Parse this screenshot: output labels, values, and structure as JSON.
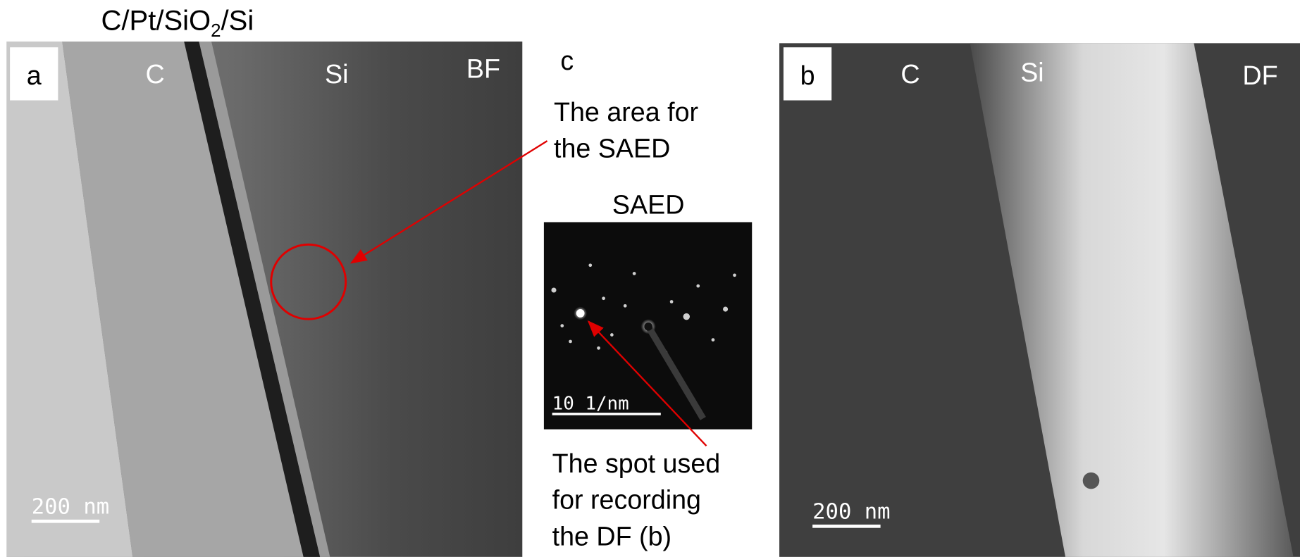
{
  "title": {
    "main": "C/Pt/SiO",
    "subscript": "2",
    "suffix": "/Si"
  },
  "panel_a": {
    "label": "a",
    "regions": [
      "C",
      "Si"
    ],
    "mode": "BF",
    "scale_bar": "200 nm"
  },
  "panel_c": {
    "label": "c",
    "area_note": [
      "The area for",
      "the SAED"
    ],
    "saed_title": "SAED",
    "scale_bar": "10 1/nm",
    "spot_note": [
      "The spot used",
      "for recording",
      "the DF (b)"
    ]
  },
  "panel_b": {
    "label": "b",
    "regions": [
      "C",
      "Si"
    ],
    "mode": "DF",
    "scale_bar": "200 nm"
  }
}
